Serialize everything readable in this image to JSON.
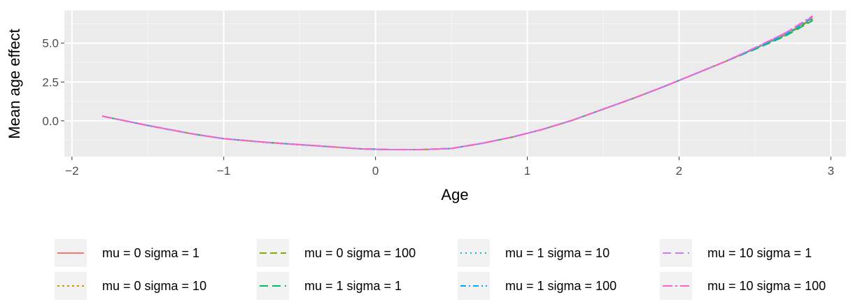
{
  "chart_data": {
    "type": "line",
    "title": "",
    "xlabel": "Age",
    "ylabel": "Mean age effect",
    "xlim": [
      -2.05,
      3.1
    ],
    "ylim": [
      -2.3,
      7.1
    ],
    "x_ticks": [
      -2,
      -1,
      0,
      1,
      2,
      3
    ],
    "x_tick_labels": [
      "−2",
      "−1",
      "0",
      "1",
      "2",
      "3"
    ],
    "y_ticks": [
      0.0,
      2.5,
      5.0
    ],
    "y_tick_labels": [
      "0.0",
      "2.5",
      "5.0"
    ],
    "grid": true,
    "legend_position": "bottom",
    "series": [
      {
        "name": "mu = 0 sigma = 1",
        "color": "#F8766D",
        "dash": "solid",
        "x": [
          -1.8,
          -1.5,
          -1.2,
          -1.0,
          -0.7,
          -0.4,
          -0.1,
          0.1,
          0.3,
          0.5,
          0.7,
          0.9,
          1.1,
          1.3,
          1.5,
          1.7,
          1.9,
          2.1,
          2.3,
          2.5,
          2.7,
          2.88
        ],
        "y": [
          0.3,
          -0.3,
          -0.85,
          -1.15,
          -1.4,
          -1.6,
          -1.8,
          -1.85,
          -1.85,
          -1.78,
          -1.45,
          -1.05,
          -0.55,
          0.05,
          0.75,
          1.45,
          2.2,
          3.0,
          3.8,
          4.65,
          5.55,
          6.6
        ]
      },
      {
        "name": "mu = 0 sigma = 10",
        "color": "#CD9600",
        "dash": "3,4",
        "x": [
          -1.8,
          -1.5,
          -1.2,
          -1.0,
          -0.7,
          -0.4,
          -0.1,
          0.1,
          0.3,
          0.5,
          0.7,
          0.9,
          1.1,
          1.3,
          1.5,
          1.7,
          1.9,
          2.1,
          2.3,
          2.5,
          2.7,
          2.88
        ],
        "y": [
          0.3,
          -0.3,
          -0.85,
          -1.15,
          -1.4,
          -1.6,
          -1.8,
          -1.85,
          -1.85,
          -1.78,
          -1.45,
          -1.05,
          -0.55,
          0.05,
          0.75,
          1.45,
          2.2,
          3.0,
          3.8,
          4.65,
          5.5,
          6.5
        ]
      },
      {
        "name": "mu = 0 sigma = 100",
        "color": "#7CAE00",
        "dash": "10,5",
        "x": [
          -1.8,
          -1.5,
          -1.2,
          -1.0,
          -0.7,
          -0.4,
          -0.1,
          0.1,
          0.3,
          0.5,
          0.7,
          0.9,
          1.1,
          1.3,
          1.5,
          1.7,
          1.9,
          2.1,
          2.3,
          2.5,
          2.7,
          2.88
        ],
        "y": [
          0.3,
          -0.3,
          -0.85,
          -1.15,
          -1.4,
          -1.6,
          -1.8,
          -1.85,
          -1.85,
          -1.78,
          -1.45,
          -1.05,
          -0.55,
          0.05,
          0.75,
          1.45,
          2.2,
          3.0,
          3.8,
          4.65,
          5.5,
          6.55
        ]
      },
      {
        "name": "mu = 1 sigma = 1",
        "color": "#00BE67",
        "dash": "12,6",
        "x": [
          -1.8,
          -1.5,
          -1.2,
          -1.0,
          -0.7,
          -0.4,
          -0.1,
          0.1,
          0.3,
          0.5,
          0.7,
          0.9,
          1.1,
          1.3,
          1.5,
          1.7,
          1.9,
          2.1,
          2.3,
          2.5,
          2.7,
          2.88
        ],
        "y": [
          0.3,
          -0.3,
          -0.85,
          -1.15,
          -1.4,
          -1.6,
          -1.8,
          -1.85,
          -1.85,
          -1.78,
          -1.45,
          -1.05,
          -0.55,
          0.05,
          0.75,
          1.45,
          2.2,
          3.0,
          3.8,
          4.6,
          5.45,
          6.45
        ]
      },
      {
        "name": "mu = 1 sigma = 10",
        "color": "#00BFC4",
        "dash": "2,5",
        "x": [
          -1.8,
          -1.5,
          -1.2,
          -1.0,
          -0.7,
          -0.4,
          -0.1,
          0.1,
          0.3,
          0.5,
          0.7,
          0.9,
          1.1,
          1.3,
          1.5,
          1.7,
          1.9,
          2.1,
          2.3,
          2.5,
          2.7,
          2.88
        ],
        "y": [
          0.3,
          -0.3,
          -0.85,
          -1.15,
          -1.4,
          -1.6,
          -1.8,
          -1.85,
          -1.85,
          -1.78,
          -1.45,
          -1.05,
          -0.55,
          0.05,
          0.75,
          1.45,
          2.2,
          3.0,
          3.8,
          4.65,
          5.5,
          6.6
        ]
      },
      {
        "name": "mu = 1 sigma = 100",
        "color": "#00A9FF",
        "dash": "8,4,2,4",
        "x": [
          -1.8,
          -1.5,
          -1.2,
          -1.0,
          -0.7,
          -0.4,
          -0.1,
          0.1,
          0.3,
          0.5,
          0.7,
          0.9,
          1.1,
          1.3,
          1.5,
          1.7,
          1.9,
          2.1,
          2.3,
          2.5,
          2.7,
          2.88
        ],
        "y": [
          0.3,
          -0.3,
          -0.85,
          -1.15,
          -1.4,
          -1.6,
          -1.8,
          -1.85,
          -1.85,
          -1.78,
          -1.45,
          -1.05,
          -0.55,
          0.05,
          0.75,
          1.45,
          2.2,
          3.0,
          3.8,
          4.65,
          5.55,
          6.65
        ]
      },
      {
        "name": "mu = 10 sigma = 1",
        "color": "#C77CFF",
        "dash": "12,6",
        "x": [
          -1.8,
          -1.5,
          -1.2,
          -1.0,
          -0.7,
          -0.4,
          -0.1,
          0.1,
          0.3,
          0.5,
          0.7,
          0.9,
          1.1,
          1.3,
          1.5,
          1.7,
          1.9,
          2.1,
          2.3,
          2.5,
          2.7,
          2.88
        ],
        "y": [
          0.3,
          -0.3,
          -0.85,
          -1.15,
          -1.4,
          -1.6,
          -1.8,
          -1.85,
          -1.85,
          -1.78,
          -1.45,
          -1.05,
          -0.55,
          0.05,
          0.75,
          1.45,
          2.2,
          3.0,
          3.8,
          4.7,
          5.65,
          6.7
        ]
      },
      {
        "name": "mu = 10 sigma = 100",
        "color": "#FF61CC",
        "dash": "14,4,3,4",
        "x": [
          -1.8,
          -1.5,
          -1.2,
          -1.0,
          -0.7,
          -0.4,
          -0.1,
          0.1,
          0.3,
          0.5,
          0.7,
          0.9,
          1.1,
          1.3,
          1.5,
          1.7,
          1.9,
          2.1,
          2.3,
          2.5,
          2.7,
          2.88
        ],
        "y": [
          0.3,
          -0.3,
          -0.85,
          -1.15,
          -1.4,
          -1.6,
          -1.8,
          -1.85,
          -1.85,
          -1.78,
          -1.45,
          -1.05,
          -0.55,
          0.05,
          0.75,
          1.45,
          2.2,
          3.0,
          3.8,
          4.7,
          5.65,
          6.75
        ]
      }
    ]
  }
}
